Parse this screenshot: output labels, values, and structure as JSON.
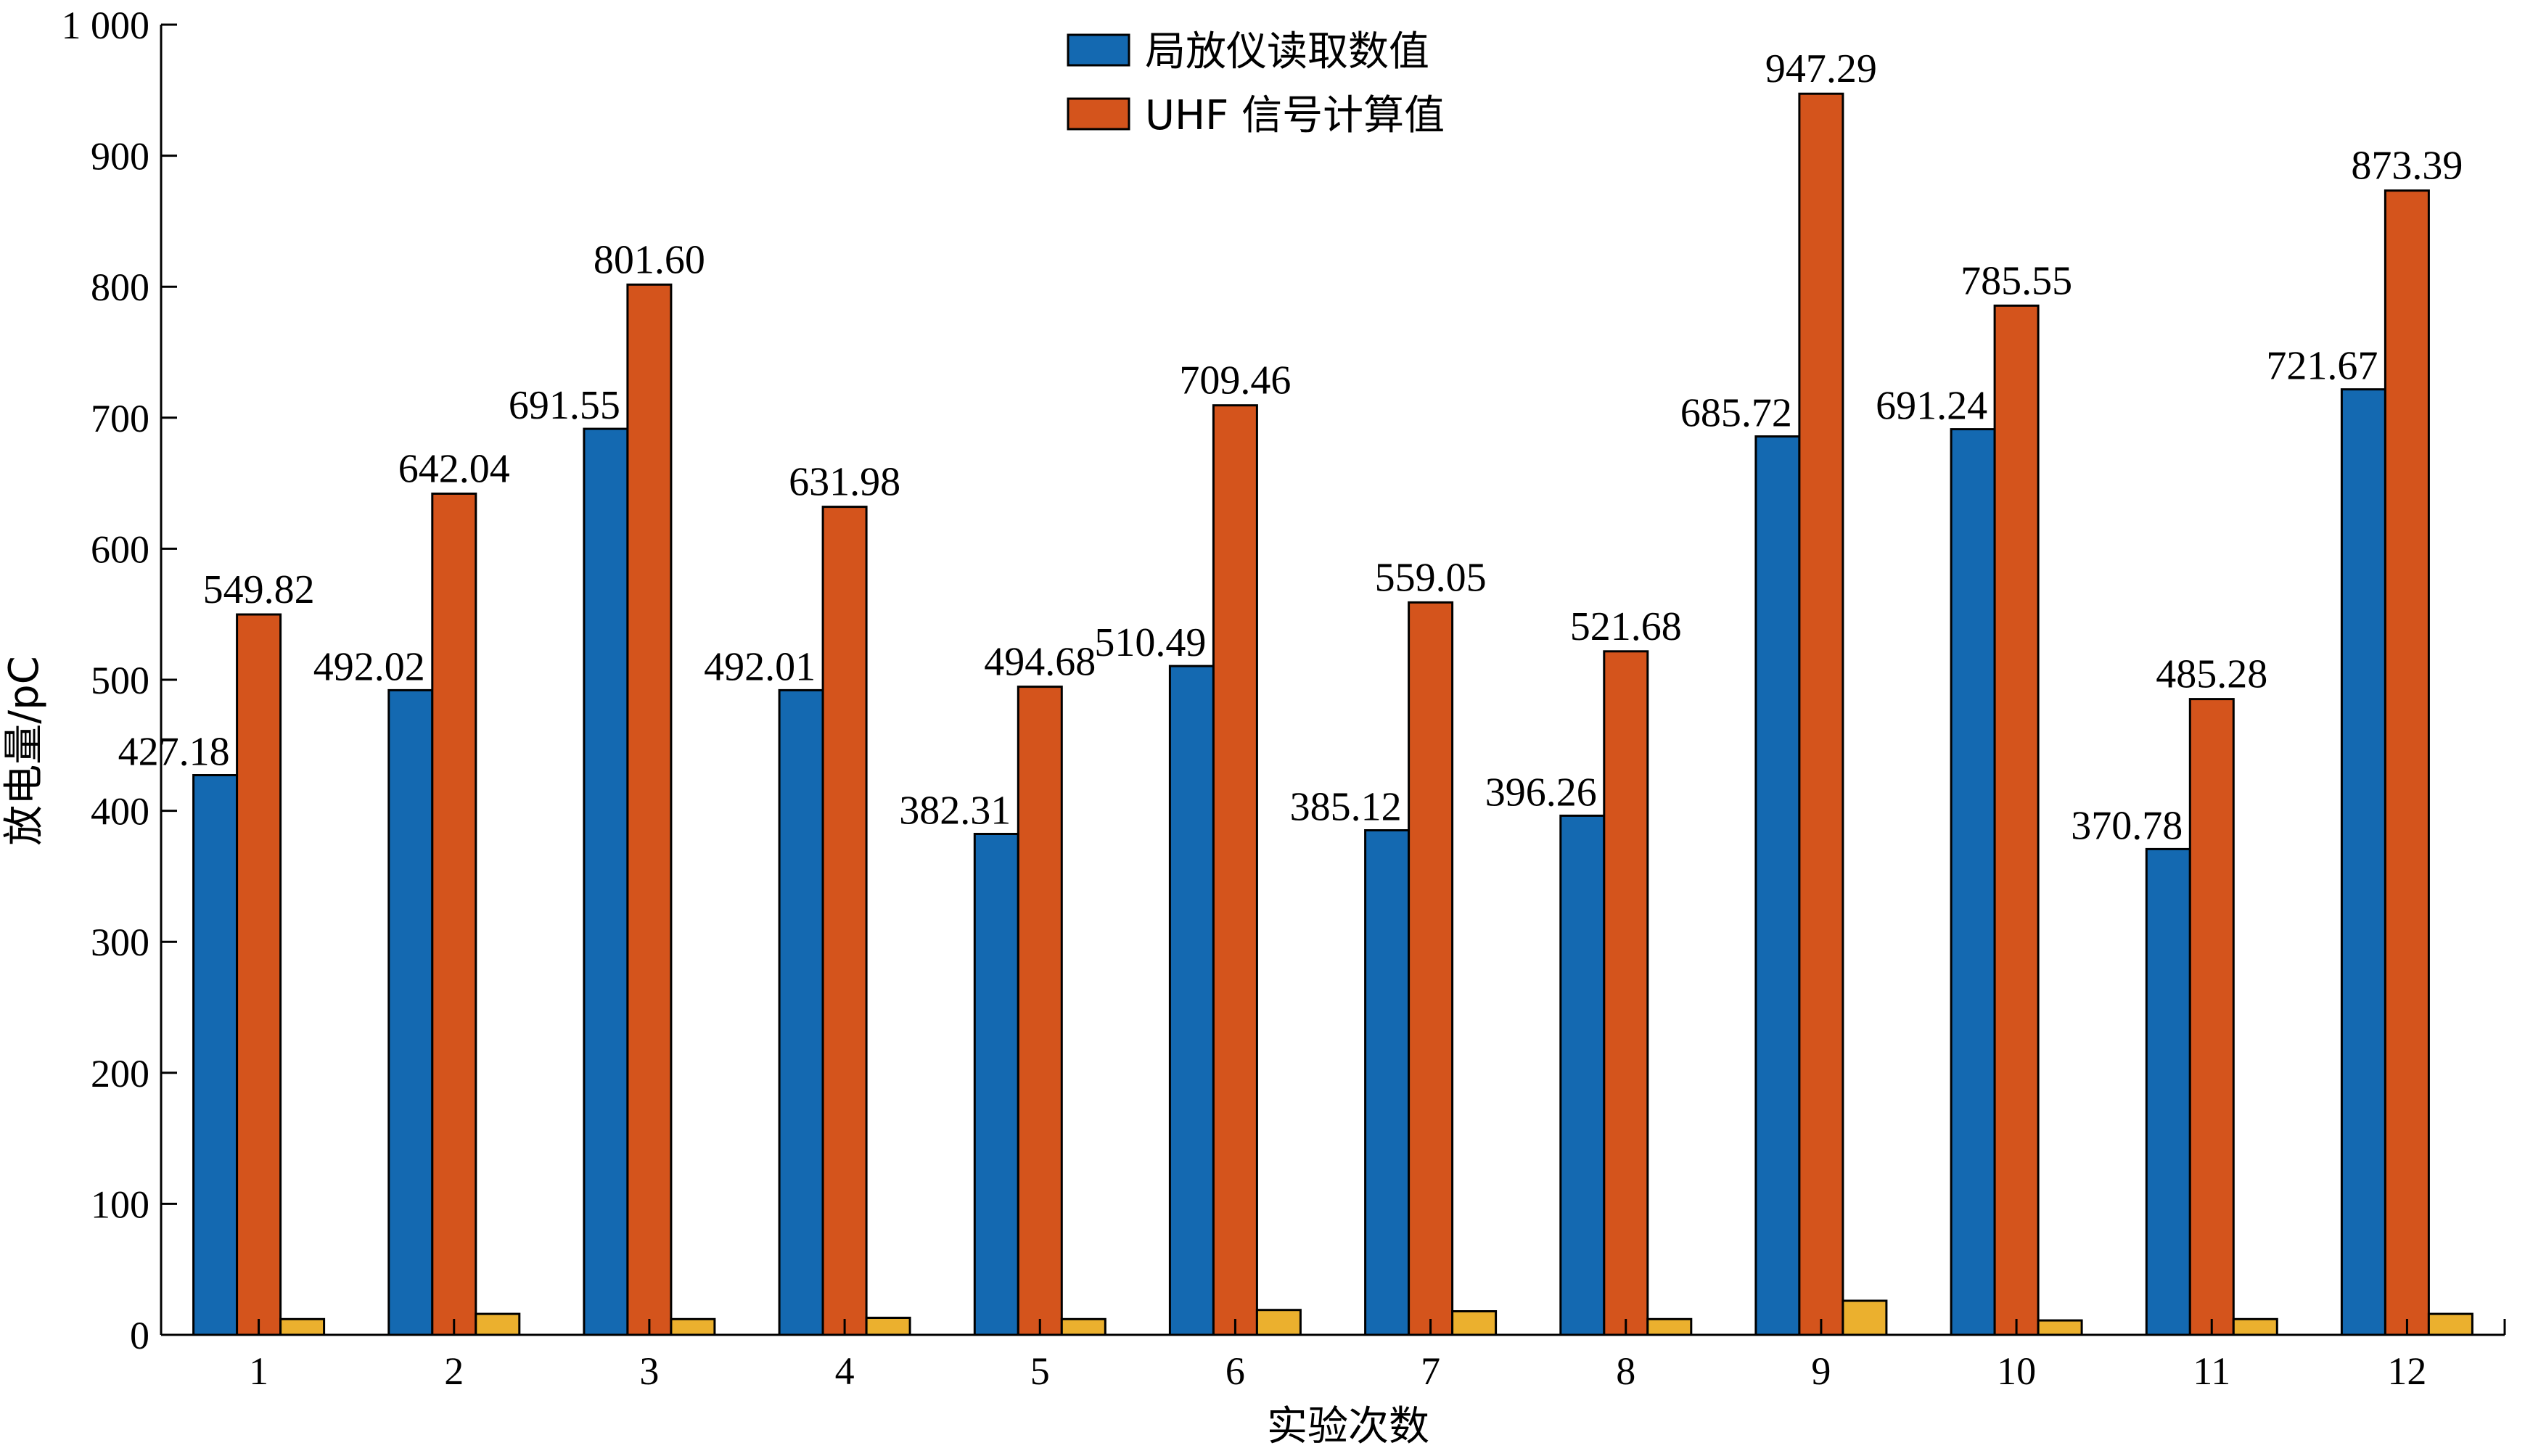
{
  "chart_data": {
    "type": "bar",
    "title": "",
    "xlabel": "实验次数",
    "ylabel": "放电量/pC",
    "categories": [
      "1",
      "2",
      "3",
      "4",
      "5",
      "6",
      "7",
      "8",
      "9",
      "10",
      "11",
      "12"
    ],
    "ylim": [
      0,
      1000
    ],
    "yticks": [
      0,
      100,
      200,
      300,
      400,
      500,
      600,
      700,
      800,
      900,
      1000
    ],
    "ytick_labels": [
      "0",
      "100",
      "200",
      "300",
      "400",
      "500",
      "600",
      "700",
      "800",
      "900",
      "1 000"
    ],
    "grid": false,
    "legend_position": "top-center",
    "series": [
      {
        "name": "局放仪读取数值",
        "color": "#1469b1",
        "values": [
          427.18,
          492.02,
          691.55,
          492.01,
          382.31,
          510.49,
          385.12,
          396.26,
          685.72,
          691.24,
          370.78,
          721.67
        ],
        "labels": [
          "427.18",
          "492.02",
          "691.55",
          "492.01",
          "382.31",
          "510.49",
          "385.12",
          "396.26",
          "685.72",
          "691.24",
          "370.78",
          "721.67"
        ]
      },
      {
        "name": "UHF 信号计算值",
        "color": "#d4541c",
        "values": [
          549.82,
          642.04,
          801.6,
          631.98,
          494.68,
          709.46,
          559.05,
          521.68,
          947.29,
          785.55,
          485.28,
          873.39
        ],
        "labels": [
          "549.82",
          "642.04",
          "801.60",
          "631.98",
          "494.68",
          "709.46",
          "559.05",
          "521.68",
          "947.29",
          "785.55",
          "485.28",
          "873.39"
        ]
      },
      {
        "color": "#ebb02e",
        "values": [
          12,
          16,
          12,
          13,
          12,
          19,
          18,
          12,
          26,
          11,
          12,
          16
        ]
      }
    ]
  }
}
